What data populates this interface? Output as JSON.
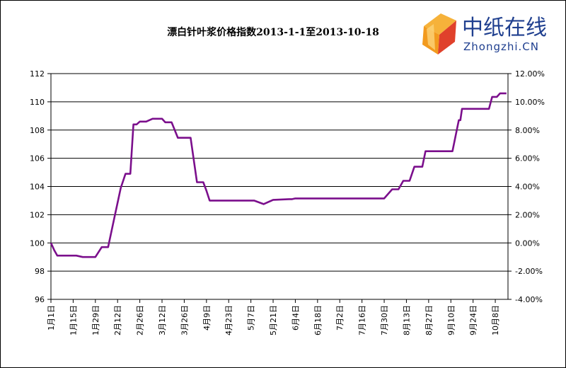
{
  "logo": {
    "name": "中纸在线",
    "domain": "Zhongzhi.CN",
    "colors": {
      "text": "#1f3f8f",
      "mark_orange": "#f29a1e",
      "mark_red": "#e0412b"
    }
  },
  "chart_data": {
    "type": "line",
    "title": "漂白针叶浆价格指数2013-1-1至2013-10-18",
    "y_left": {
      "ylim": [
        96,
        112
      ],
      "ticks": [
        "96",
        "98",
        "100",
        "102",
        "104",
        "106",
        "108",
        "110",
        "112"
      ]
    },
    "y_right": {
      "ylim": [
        -4,
        12
      ],
      "ticks": [
        "-4.00%",
        "-2.00%",
        "0.00%",
        "2.00%",
        "4.00%",
        "6.00%",
        "8.00%",
        "10.00%",
        "12.00%"
      ]
    },
    "x_ticks": [
      "1月1日",
      "1月15日",
      "1月29日",
      "2月12日",
      "2月26日",
      "3月12日",
      "3月26日",
      "4月9日",
      "4月23日",
      "5月7日",
      "5月21日",
      "6月4日",
      "6月18日",
      "7月2日",
      "7月16日",
      "7月30日",
      "8月13日",
      "8月27日",
      "9月10日",
      "9月24日",
      "10月8日"
    ],
    "grid": "horizontal",
    "legend": "none",
    "series": [
      {
        "color": "#7b0f8c",
        "x_days": [
          0,
          2,
          4,
          6,
          10,
          16,
          20,
          23,
          24,
          28,
          32,
          36,
          40,
          44,
          47,
          50,
          52,
          54,
          56,
          58,
          60,
          64,
          68,
          70,
          72,
          74,
          76,
          80,
          84,
          88,
          92,
          96,
          98,
          100,
          102,
          106,
          110,
          116,
          122,
          128,
          134,
          140,
          150,
          152,
          154,
          156,
          160,
          170,
          180,
          190,
          200,
          210,
          215,
          217,
          219,
          222,
          224,
          226,
          229,
          231,
          234,
          236,
          240,
          248,
          253,
          255,
          257,
          258,
          259,
          260,
          264,
          270,
          274,
          276,
          278,
          280,
          281,
          283,
          287
        ],
        "values": [
          100.0,
          99.5,
          99.1,
          99.1,
          99.1,
          99.1,
          99.0,
          99.0,
          99.0,
          99.0,
          99.7,
          99.7,
          101.8,
          103.9,
          104.9,
          104.9,
          108.4,
          108.4,
          108.6,
          108.6,
          108.6,
          108.8,
          108.8,
          108.8,
          108.55,
          108.55,
          108.55,
          107.45,
          107.45,
          107.45,
          104.3,
          104.3,
          103.7,
          103.0,
          103.0,
          103.0,
          103.0,
          103.0,
          103.0,
          103.0,
          102.75,
          103.05,
          103.1,
          103.1,
          103.15,
          103.15,
          103.15,
          103.15,
          103.15,
          103.15,
          103.15,
          103.15,
          103.8,
          103.8,
          103.8,
          104.4,
          104.4,
          104.4,
          105.4,
          105.4,
          105.4,
          106.5,
          106.5,
          106.5,
          106.5,
          107.6,
          108.7,
          108.7,
          109.5,
          109.5,
          109.5,
          109.5,
          109.5,
          109.5,
          110.35,
          110.35,
          110.35,
          110.6,
          110.6
        ]
      }
    ]
  }
}
